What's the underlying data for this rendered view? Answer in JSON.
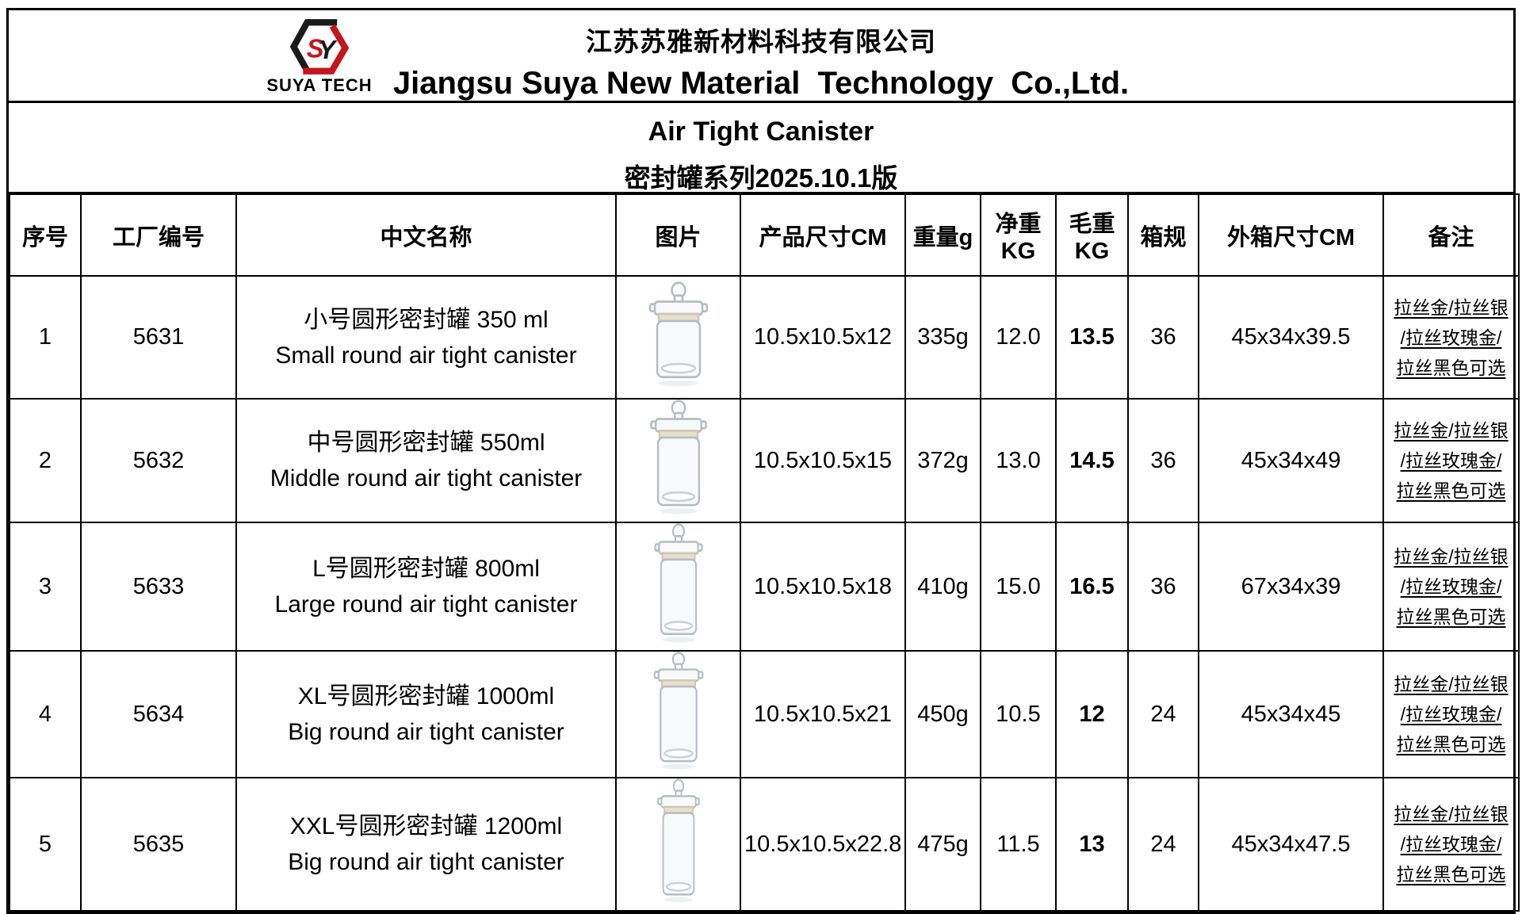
{
  "company": {
    "logo": {
      "icon": "suya-hexagon-logo",
      "text": "SUYA TECH",
      "red": "#c4161d",
      "black": "#1a1a1a"
    },
    "name_zh": "江苏苏雅新材料科技有限公司",
    "name_en": "Jiangsu Suya New Material  Technology  Co.,Ltd."
  },
  "title": {
    "line_en": "Air Tight Canister",
    "line_zh": "密封罐系列2025.10.1版"
  },
  "table": {
    "columns": [
      {
        "key": "index",
        "label": "序号"
      },
      {
        "key": "code",
        "label": "工厂编号"
      },
      {
        "key": "name",
        "label": "中文名称"
      },
      {
        "key": "photo",
        "label": "图片"
      },
      {
        "key": "size",
        "label": "产品尺寸CM"
      },
      {
        "key": "weight",
        "label": "重量g"
      },
      {
        "key": "net_kg",
        "label": "净重KG"
      },
      {
        "key": "gross_kg",
        "label": "毛重KG"
      },
      {
        "key": "carton_qty",
        "label": "箱规"
      },
      {
        "key": "carton_size",
        "label": "外箱尺寸CM"
      },
      {
        "key": "remark",
        "label": "备注"
      }
    ],
    "rows": [
      {
        "index": "1",
        "code": "5631",
        "name_zh": "小号圆形密封罐 350 ml",
        "name_en": "Small round air tight canister",
        "photo": "glass-canister-photo",
        "jar": "S",
        "size": "10.5x10.5x12",
        "weight": "335g",
        "net_kg": "12.0",
        "gross_kg": "13.5",
        "carton_qty": "36",
        "carton_size": "45x34x39.5",
        "remark": [
          "拉丝金/拉丝银",
          "/拉丝玫瑰金/",
          "拉丝黑色可选"
        ]
      },
      {
        "index": "2",
        "code": "5632",
        "name_zh": "中号圆形密封罐 550ml",
        "name_en": "Middle round air tight canister",
        "photo": "glass-canister-photo",
        "jar": "M",
        "size": "10.5x10.5x15",
        "weight": "372g",
        "net_kg": "13.0",
        "gross_kg": "14.5",
        "carton_qty": "36",
        "carton_size": "45x34x49",
        "remark": [
          "拉丝金/拉丝银",
          "/拉丝玫瑰金/",
          "拉丝黑色可选"
        ]
      },
      {
        "index": "3",
        "code": "5633",
        "name_zh": "L号圆形密封罐 800ml",
        "name_en": "Large round air tight canister",
        "photo": "glass-canister-photo",
        "jar": "L",
        "size": "10.5x10.5x18",
        "weight": "410g",
        "net_kg": "15.0",
        "gross_kg": "16.5",
        "carton_qty": "36",
        "carton_size": "67x34x39",
        "remark": [
          "拉丝金/拉丝银",
          "/拉丝玫瑰金/",
          "拉丝黑色可选"
        ]
      },
      {
        "index": "4",
        "code": "5634",
        "name_zh": "XL号圆形密封罐 1000ml",
        "name_en": "Big round air tight canister",
        "photo": "glass-canister-photo",
        "jar": "XL",
        "size": "10.5x10.5x21",
        "weight": "450g",
        "net_kg": "10.5",
        "gross_kg": "12",
        "carton_qty": "24",
        "carton_size": "45x34x45",
        "remark": [
          "拉丝金/拉丝银",
          "/拉丝玫瑰金/",
          "拉丝黑色可选"
        ]
      },
      {
        "index": "5",
        "code": "5635",
        "name_zh": "XXL号圆形密封罐 1200ml",
        "name_en": "Big round air tight canister",
        "photo": "glass-canister-photo",
        "jar": "XXL",
        "size": "10.5x10.5x22.8",
        "weight": "475g",
        "net_kg": "11.5",
        "gross_kg": "13",
        "carton_qty": "24",
        "carton_size": "45x34x47.5",
        "remark": [
          "拉丝金/拉丝银",
          "/拉丝玫瑰金/",
          "拉丝黑色可选"
        ]
      }
    ]
  }
}
